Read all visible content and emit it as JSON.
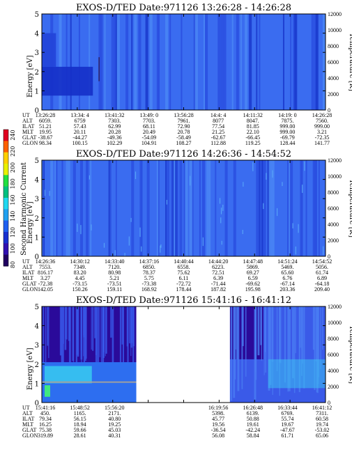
{
  "colors": {
    "background_spectrogram": "#3a6cf0",
    "low_energy_band": "#1530c8",
    "deep": "#2a0a9a",
    "gap": "#ffffff",
    "cyan": "#3ad8f0"
  },
  "colorbar": {
    "label": "Second Harmonic Current",
    "ticks": [
      "240",
      "220",
      "200",
      "180",
      "160",
      "140",
      "120",
      "100",
      "80"
    ],
    "colors": [
      "#e00020",
      "#ff6000",
      "#ffd000",
      "#e8f000",
      "#20e040",
      "#00c080",
      "#20d8f0",
      "#20a0f0",
      "#2060f0",
      "#1830d0",
      "#3010b0",
      "#200060"
    ]
  },
  "chart_data": [
    {
      "type": "heatmap",
      "title": "EXOS-D/TED   Date:971126   13:26:28 - 14:26:28",
      "ylabel": "Energy [eV]",
      "ylabel2": "Temperature [K]",
      "ylim": [
        0,
        5
      ],
      "ylim2": [
        0,
        12000
      ],
      "yticks": [
        "0",
        "1",
        "2",
        "3",
        "4",
        "5"
      ],
      "yticks2": [
        "0",
        "2000",
        "4000",
        "6000",
        "8000",
        "10000",
        "12000"
      ],
      "gaps": [],
      "ephemeris": {
        "labels": [
          "UT",
          "ALT",
          "ILAT",
          "MLT",
          "GLAT",
          "GLON"
        ],
        "columns": [
          [
            "13:26:28",
            "6059.",
            "51.21",
            "19.95",
            "-38.67",
            "98.34"
          ],
          [
            "13:34: 4",
            "6759",
            "57.43",
            "20.11",
            "-44.27",
            "100.15"
          ],
          [
            "13:41:32",
            "7303.",
            "62.99",
            "20.28",
            "-49.36",
            "102.29"
          ],
          [
            "13:49: 0",
            "7703.",
            "68.11",
            "20.49",
            "-54.09",
            "104.91"
          ],
          [
            "13:56:28",
            "7961.",
            "72.90",
            "20.78",
            "-58.49",
            "108.27"
          ],
          [
            "14:4: 4",
            "8077",
            "77.54",
            "21.25",
            "-62.67",
            "112.88"
          ],
          [
            "14:11:32",
            "8047.",
            "81.85",
            "22.10",
            "-66.45",
            "119.25"
          ],
          [
            "14:19: 0",
            "7875.",
            "999.00",
            "999.00",
            "-69.79",
            "128.44"
          ],
          [
            "14:26:28",
            "7560.",
            "999.00",
            "3.21",
            "-72.35",
            "141.77"
          ]
        ]
      }
    },
    {
      "type": "heatmap",
      "title": "EXOS-D/TED   Date:971126   14:26:36 - 14:54:52",
      "ylabel": "Energy [eV]",
      "ylabel2": "Temperature [K]",
      "ylim": [
        0,
        5
      ],
      "ylim2": [
        0,
        12000
      ],
      "yticks": [
        "0",
        "1",
        "2",
        "3",
        "4",
        "5"
      ],
      "yticks2": [
        "0",
        "2000",
        "4000",
        "6000",
        "8000",
        "10000",
        "12000"
      ],
      "gaps": [],
      "ephemeris": {
        "labels": [
          "UT",
          "ALT",
          "ILAT",
          "MLT",
          "GLAT",
          "GLON"
        ],
        "columns": [
          [
            "14:26:36",
            "7553.",
            "816.17",
            "3.27",
            "-72.38",
            "142.05"
          ],
          [
            "14:30:12",
            "7349.",
            "83.20",
            "4.45",
            "-73.15",
            "150.26"
          ],
          [
            "14:33:40",
            "7120.",
            "80.98",
            "5.21",
            "-73.51",
            "159.11"
          ],
          [
            "14:37:16",
            "6850.",
            "78.37",
            "5.75",
            "-73.38",
            "168.92"
          ],
          [
            "14:40:44",
            "6558.",
            "75.62",
            "6.11",
            "-72.72",
            "178.44"
          ],
          [
            "14:44:20",
            "6223.",
            "72.51",
            "6.39",
            "-71.44",
            "187.82"
          ],
          [
            "14:47:48",
            "5869.",
            "69.27",
            "6.59",
            "-69.62",
            "195.98"
          ],
          [
            "14:51:24",
            "5469.",
            "65.60",
            "6.76",
            "-67.14",
            "203.36"
          ],
          [
            "14:54:52",
            "5056.",
            "61.74",
            "6.89",
            "-64.18",
            "209.40"
          ]
        ]
      }
    },
    {
      "type": "heatmap",
      "title": "EXOS-D/TED   Date:971126   15:41:16 - 16:41:12",
      "ylabel": "Energy [eV]",
      "ylabel2": "Temperature [K]",
      "ylim": [
        0,
        5
      ],
      "ylim2": [
        0,
        12000
      ],
      "yticks": [
        "0",
        "1",
        "2",
        "3",
        "4",
        "5"
      ],
      "yticks2": [
        "0",
        "2000",
        "4000",
        "6000",
        "8000",
        "10000",
        "12000"
      ],
      "gaps": [
        [
          0.333,
          0.663
        ]
      ],
      "ephemeris": {
        "labels": [
          "UT",
          "ALT",
          "ILAT",
          "MLT",
          "GLAT",
          "GLON"
        ],
        "columns": [
          [
            "15:41:16",
            "450.",
            "79.34",
            "16.25",
            "75.38",
            "319.89"
          ],
          [
            "15:48:52",
            "1165.",
            "56.15",
            "18.94",
            "59.66",
            "28.61"
          ],
          [
            "15:56:20",
            "2171.",
            "40.80",
            "19.25",
            "45.03",
            "40.31"
          ],
          [
            "",
            "",
            "",
            "",
            "",
            ""
          ],
          [
            "",
            "",
            "",
            "",
            "",
            ""
          ],
          [
            "16:19:56",
            "5398.",
            "45.77",
            "19.56",
            "-36.54",
            "56.08"
          ],
          [
            "16:26:48",
            "6139.",
            "50.88",
            "19.61",
            "-42.24",
            "58.84"
          ],
          [
            "16:33:44",
            "6769.",
            "55.74",
            "19.67",
            "-47.67",
            "61.71"
          ],
          [
            "16:41:12",
            "7311.",
            "60.58",
            "19.74",
            "-53.02",
            "65.06"
          ]
        ]
      }
    }
  ]
}
